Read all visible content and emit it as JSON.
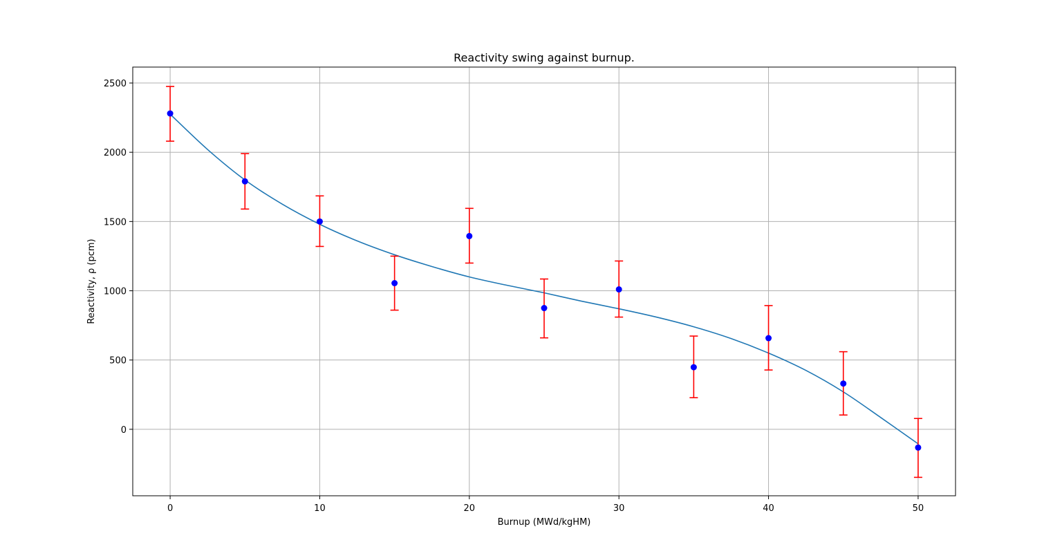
{
  "chart_data": {
    "type": "scatter",
    "title": "Reactivity swing against burnup.",
    "xlabel": "Burnup (MWd/kgHM)",
    "ylabel": "Reactivity, ρ (pcm)",
    "xlim": [
      -2.5,
      52.5
    ],
    "ylim": [
      -480,
      2615
    ],
    "xticks": [
      0,
      10,
      20,
      30,
      40,
      50
    ],
    "yticks": [
      0,
      500,
      1000,
      1500,
      2000,
      2500
    ],
    "grid": true,
    "colors": {
      "points": "#0000ff",
      "errorbars": "#ff0000",
      "fit": "#1f77b4",
      "grid": "#b0b0b0"
    },
    "series": [
      {
        "type": "scatter_errorbar",
        "x": [
          0,
          5,
          10,
          15,
          20,
          25,
          30,
          35,
          40,
          45,
          50
        ],
        "y": [
          2280,
          1790,
          1500,
          1055,
          1395,
          875,
          1010,
          448,
          658,
          330,
          -132
        ],
        "yerr_upper": [
          2475,
          1990,
          1685,
          1250,
          1595,
          1085,
          1215,
          673,
          893,
          560,
          78
        ],
        "yerr_lower": [
          2080,
          1590,
          1320,
          860,
          1200,
          660,
          810,
          228,
          428,
          103,
          -347
        ]
      },
      {
        "type": "line",
        "x": [
          0,
          2.5,
          5,
          7.5,
          10,
          12.5,
          15,
          17.5,
          20,
          22.5,
          25,
          27.5,
          30,
          32.5,
          35,
          37.5,
          40,
          42.5,
          45,
          47.5,
          50
        ],
        "y": [
          2275,
          2020,
          1800,
          1625,
          1480,
          1360,
          1260,
          1175,
          1100,
          1040,
          985,
          925,
          870,
          810,
          740,
          655,
          550,
          425,
          270,
          85,
          -105
        ]
      }
    ]
  }
}
